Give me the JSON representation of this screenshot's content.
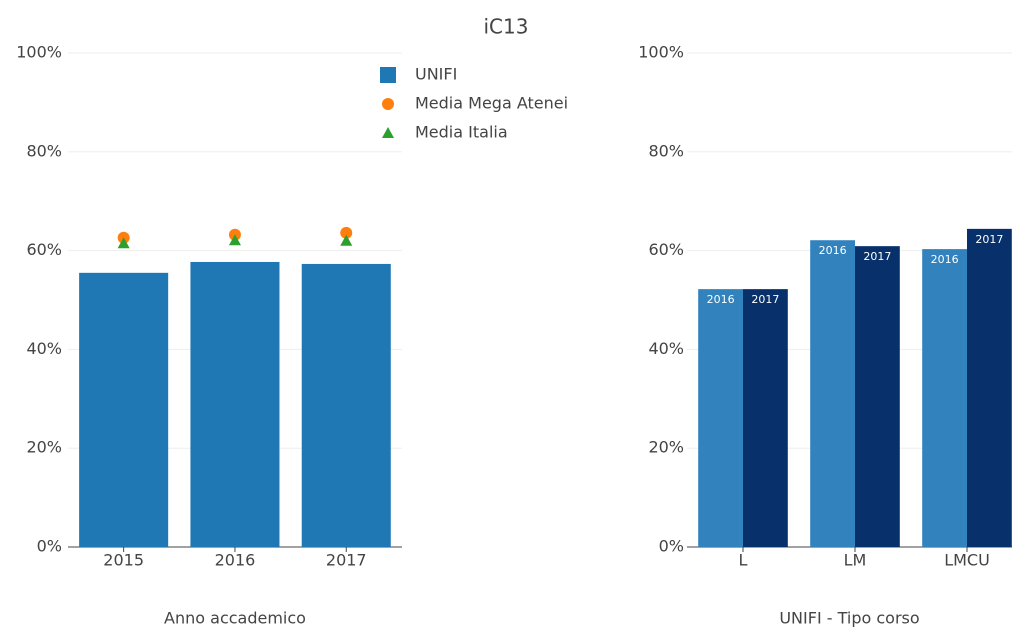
{
  "title": "iC13",
  "chart_data": [
    {
      "type": "bar",
      "x_label": "Anno accademico",
      "categories": [
        "2015",
        "2016",
        "2017"
      ],
      "series": [
        {
          "name": "UNIFI",
          "color": "#1f77b4",
          "mark": "bar",
          "values": [
            55.5,
            57.7,
            57.3
          ]
        },
        {
          "name": "Media Mega Atenei",
          "color": "#ff7f0e",
          "mark": "circle",
          "values": [
            62.6,
            63.2,
            63.6
          ]
        },
        {
          "name": "Media Italia",
          "color": "#2ca02c",
          "mark": "triangle",
          "values": [
            61.5,
            62.1,
            62.0
          ]
        }
      ],
      "ylim": [
        0,
        100
      ],
      "yticks": [
        {
          "value": 0,
          "label": "0%"
        },
        {
          "value": 20,
          "label": "20%"
        },
        {
          "value": 40,
          "label": "40%"
        },
        {
          "value": 60,
          "label": "60%"
        },
        {
          "value": 80,
          "label": "80%"
        },
        {
          "value": 100,
          "label": "100%"
        }
      ],
      "grid": true,
      "legend": "top-right"
    },
    {
      "type": "bar",
      "x_label": "UNIFI - Tipo corso",
      "categories": [
        "L",
        "LM",
        "LMCU"
      ],
      "series": [
        {
          "name": "2016",
          "color": "#3182bd",
          "mark": "bar",
          "values": [
            52.2,
            62.1,
            60.3
          ]
        },
        {
          "name": "2017",
          "color": "#08306b",
          "mark": "bar",
          "values": [
            52.2,
            60.9,
            64.4
          ]
        }
      ],
      "ylim": [
        0,
        100
      ],
      "yticks": [
        {
          "value": 0,
          "label": "0%"
        },
        {
          "value": 20,
          "label": "20%"
        },
        {
          "value": 40,
          "label": "40%"
        },
        {
          "value": 60,
          "label": "60%"
        },
        {
          "value": 80,
          "label": "80%"
        },
        {
          "value": 100,
          "label": "100%"
        }
      ],
      "grid": true,
      "bar_labels": true
    }
  ]
}
